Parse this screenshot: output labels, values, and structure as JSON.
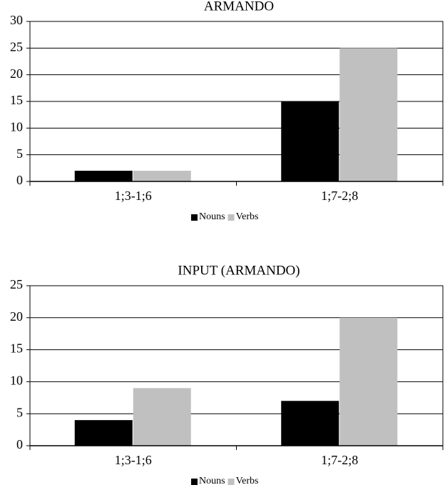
{
  "chart_data": [
    {
      "type": "bar",
      "title": "ARMANDO",
      "categories": [
        "1;3-1;6",
        "1;7-2;8"
      ],
      "series": [
        {
          "name": "Nouns",
          "color": "#000000",
          "values": [
            2,
            15
          ]
        },
        {
          "name": "Verbs",
          "color": "#c0c0c0",
          "values": [
            2,
            25
          ]
        }
      ],
      "ylim": [
        0,
        30
      ],
      "yticks": [
        0,
        5,
        10,
        15,
        20,
        25,
        30
      ],
      "grid": true,
      "legend": "bottom"
    },
    {
      "type": "bar",
      "title": "INPUT (ARMANDO)",
      "categories": [
        "1;3-1;6",
        "1;7-2;8"
      ],
      "series": [
        {
          "name": "Nouns",
          "color": "#000000",
          "values": [
            4,
            7
          ]
        },
        {
          "name": "Verbs",
          "color": "#c0c0c0",
          "values": [
            9,
            20
          ]
        }
      ],
      "ylim": [
        0,
        25
      ],
      "yticks": [
        0,
        5,
        10,
        15,
        20,
        25
      ],
      "grid": true,
      "legend": "bottom"
    }
  ]
}
